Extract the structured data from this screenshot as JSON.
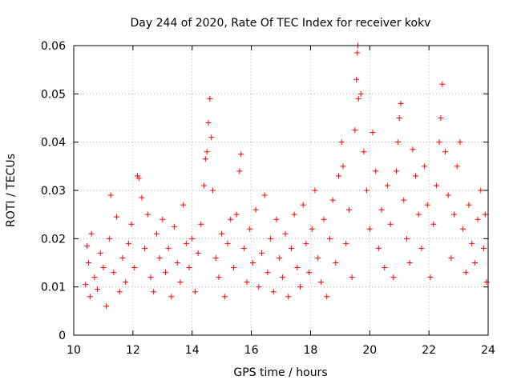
{
  "chart_data": {
    "type": "scatter",
    "title": "Day 244 of 2020, Rate Of TEC Index for receiver kokv",
    "xlabel": "GPS time / hours",
    "ylabel": "ROTI / TECUs",
    "xlim": [
      10,
      24
    ],
    "ylim": [
      0,
      0.06
    ],
    "x_ticks": [
      "10",
      "12",
      "14",
      "16",
      "18",
      "20",
      "22",
      "24"
    ],
    "y_ticks": [
      "0",
      "0.01",
      "0.02",
      "0.03",
      "0.04",
      "0.05",
      "0.06"
    ],
    "grid": true,
    "marker": "+",
    "color": "#ff0000",
    "series": [
      {
        "points": [
          [
            10.4,
            0.0105
          ],
          [
            10.45,
            0.0185
          ],
          [
            10.5,
            0.015
          ],
          [
            10.55,
            0.008
          ],
          [
            10.6,
            0.021
          ],
          [
            10.7,
            0.012
          ],
          [
            10.8,
            0.0095
          ],
          [
            10.9,
            0.017
          ],
          [
            11.0,
            0.014
          ],
          [
            11.1,
            0.006
          ],
          [
            11.2,
            0.02
          ],
          [
            11.25,
            0.029
          ],
          [
            11.35,
            0.013
          ],
          [
            11.45,
            0.0245
          ],
          [
            11.55,
            0.009
          ],
          [
            11.65,
            0.016
          ],
          [
            11.75,
            0.011
          ],
          [
            11.85,
            0.019
          ],
          [
            11.95,
            0.023
          ],
          [
            12.05,
            0.014
          ],
          [
            12.15,
            0.033
          ],
          [
            12.2,
            0.0325
          ],
          [
            12.3,
            0.0285
          ],
          [
            12.4,
            0.018
          ],
          [
            12.5,
            0.025
          ],
          [
            12.6,
            0.012
          ],
          [
            12.7,
            0.009
          ],
          [
            12.8,
            0.021
          ],
          [
            12.9,
            0.016
          ],
          [
            13.0,
            0.024
          ],
          [
            13.1,
            0.013
          ],
          [
            13.2,
            0.018
          ],
          [
            13.3,
            0.008
          ],
          [
            13.4,
            0.0225
          ],
          [
            13.5,
            0.015
          ],
          [
            13.6,
            0.011
          ],
          [
            13.7,
            0.027
          ],
          [
            13.8,
            0.019
          ],
          [
            13.9,
            0.014
          ],
          [
            14.0,
            0.02
          ],
          [
            14.1,
            0.009
          ],
          [
            14.2,
            0.017
          ],
          [
            14.3,
            0.023
          ],
          [
            14.4,
            0.031
          ],
          [
            14.45,
            0.0365
          ],
          [
            14.5,
            0.038
          ],
          [
            14.55,
            0.044
          ],
          [
            14.6,
            0.049
          ],
          [
            14.65,
            0.041
          ],
          [
            14.7,
            0.03
          ],
          [
            14.8,
            0.016
          ],
          [
            14.9,
            0.012
          ],
          [
            15.0,
            0.021
          ],
          [
            15.1,
            0.008
          ],
          [
            15.2,
            0.019
          ],
          [
            15.3,
            0.024
          ],
          [
            15.4,
            0.014
          ],
          [
            15.5,
            0.025
          ],
          [
            15.6,
            0.034
          ],
          [
            15.65,
            0.0375
          ],
          [
            15.75,
            0.018
          ],
          [
            15.85,
            0.011
          ],
          [
            15.95,
            0.022
          ],
          [
            16.05,
            0.015
          ],
          [
            16.15,
            0.026
          ],
          [
            16.25,
            0.01
          ],
          [
            16.35,
            0.017
          ],
          [
            16.45,
            0.029
          ],
          [
            16.55,
            0.013
          ],
          [
            16.65,
            0.02
          ],
          [
            16.75,
            0.009
          ],
          [
            16.85,
            0.024
          ],
          [
            16.95,
            0.016
          ],
          [
            17.05,
            0.012
          ],
          [
            17.15,
            0.021
          ],
          [
            17.25,
            0.008
          ],
          [
            17.35,
            0.018
          ],
          [
            17.45,
            0.025
          ],
          [
            17.55,
            0.014
          ],
          [
            17.65,
            0.01
          ],
          [
            17.75,
            0.027
          ],
          [
            17.85,
            0.019
          ],
          [
            17.95,
            0.013
          ],
          [
            18.05,
            0.022
          ],
          [
            18.15,
            0.03
          ],
          [
            18.25,
            0.016
          ],
          [
            18.35,
            0.011
          ],
          [
            18.45,
            0.024
          ],
          [
            18.55,
            0.008
          ],
          [
            18.65,
            0.02
          ],
          [
            18.75,
            0.028
          ],
          [
            18.85,
            0.015
          ],
          [
            18.95,
            0.033
          ],
          [
            19.05,
            0.04
          ],
          [
            19.1,
            0.035
          ],
          [
            19.2,
            0.019
          ],
          [
            19.3,
            0.026
          ],
          [
            19.4,
            0.012
          ],
          [
            19.5,
            0.0425
          ],
          [
            19.55,
            0.053
          ],
          [
            19.58,
            0.0585
          ],
          [
            19.6,
            0.06
          ],
          [
            19.62,
            0.049
          ],
          [
            19.7,
            0.05
          ],
          [
            19.8,
            0.038
          ],
          [
            19.9,
            0.03
          ],
          [
            20.0,
            0.022
          ],
          [
            20.1,
            0.042
          ],
          [
            20.2,
            0.034
          ],
          [
            20.3,
            0.018
          ],
          [
            20.4,
            0.026
          ],
          [
            20.5,
            0.014
          ],
          [
            20.6,
            0.031
          ],
          [
            20.7,
            0.023
          ],
          [
            20.8,
            0.012
          ],
          [
            20.9,
            0.034
          ],
          [
            20.95,
            0.04
          ],
          [
            21.0,
            0.045
          ],
          [
            21.05,
            0.048
          ],
          [
            21.15,
            0.028
          ],
          [
            21.25,
            0.02
          ],
          [
            21.35,
            0.015
          ],
          [
            21.45,
            0.0385
          ],
          [
            21.55,
            0.033
          ],
          [
            21.65,
            0.025
          ],
          [
            21.75,
            0.018
          ],
          [
            21.85,
            0.035
          ],
          [
            21.95,
            0.027
          ],
          [
            22.05,
            0.012
          ],
          [
            22.15,
            0.023
          ],
          [
            22.25,
            0.031
          ],
          [
            22.35,
            0.04
          ],
          [
            22.4,
            0.045
          ],
          [
            22.45,
            0.052
          ],
          [
            22.55,
            0.038
          ],
          [
            22.65,
            0.029
          ],
          [
            22.75,
            0.016
          ],
          [
            22.85,
            0.025
          ],
          [
            22.95,
            0.035
          ],
          [
            23.05,
            0.04
          ],
          [
            23.15,
            0.022
          ],
          [
            23.25,
            0.013
          ],
          [
            23.35,
            0.027
          ],
          [
            23.45,
            0.019
          ],
          [
            23.55,
            0.015
          ],
          [
            23.65,
            0.024
          ],
          [
            23.75,
            0.03
          ],
          [
            23.85,
            0.018
          ],
          [
            23.95,
            0.011
          ],
          [
            23.9,
            0.025
          ]
        ]
      }
    ]
  }
}
